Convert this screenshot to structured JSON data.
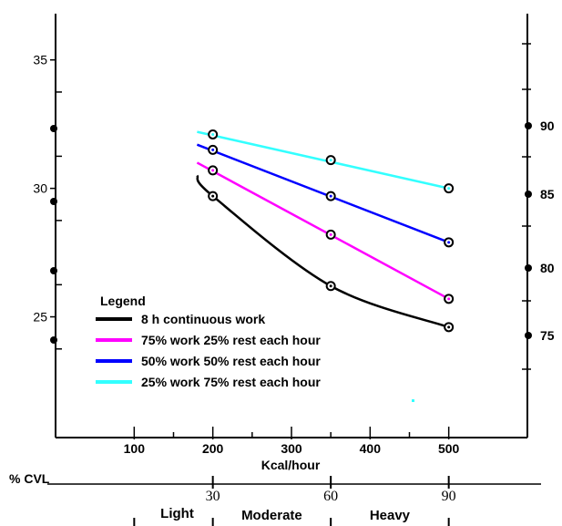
{
  "chart_data": {
    "type": "line",
    "xlabel": "Kcal/hour",
    "x_ticks": [
      100,
      200,
      300,
      400,
      500
    ],
    "xlim": [
      0,
      600
    ],
    "left_y_ticks": [
      25,
      30,
      35
    ],
    "left_ylim": [
      20.3,
      36.8
    ],
    "right_y_ticks": [
      75,
      80,
      85,
      90
    ],
    "legend_title": "Legend",
    "legend_position": "lower-left",
    "series": [
      {
        "name": "8 h continuous work",
        "color": "#000000",
        "points": [
          [
            180,
            30.5
          ],
          [
            200,
            29.7
          ],
          [
            350,
            26.2
          ],
          [
            500,
            24.6
          ]
        ],
        "curved": true,
        "markers_x": [
          200,
          350,
          500
        ]
      },
      {
        "name": "75% work 25% rest each hour",
        "color": "#ff00ff",
        "points": [
          [
            180,
            31.0
          ],
          [
            200,
            30.7
          ],
          [
            350,
            28.2
          ],
          [
            500,
            25.7
          ]
        ],
        "curved": false,
        "markers_x": [
          200,
          350,
          500
        ]
      },
      {
        "name": "50% work 50% rest each hour",
        "color": "#0000ff",
        "points": [
          [
            180,
            31.7
          ],
          [
            200,
            31.5
          ],
          [
            350,
            29.7
          ],
          [
            500,
            27.9
          ]
        ],
        "curved": false,
        "markers_x": [
          200,
          350,
          500
        ]
      },
      {
        "name": "25% work 75% rest each hour",
        "color": "#33ffff",
        "points": [
          [
            180,
            32.2
          ],
          [
            200,
            32.1
          ],
          [
            350,
            31.1
          ],
          [
            500,
            30.0
          ]
        ],
        "curved": false,
        "markers_x": [
          200,
          350,
          500
        ]
      }
    ],
    "cvl_axis": {
      "label": "% CVL",
      "ticks": [
        {
          "x": 200,
          "label": "30"
        },
        {
          "x": 350,
          "label": "60"
        },
        {
          "x": 500,
          "label": "90"
        }
      ]
    },
    "zones": [
      {
        "label": "Light",
        "x_center": 150
      },
      {
        "label": "Moderate",
        "x_center": 275
      },
      {
        "label": "Heavy",
        "x_center": 425
      }
    ],
    "zone_dividers_x": [
      100,
      200,
      350,
      500
    ]
  }
}
